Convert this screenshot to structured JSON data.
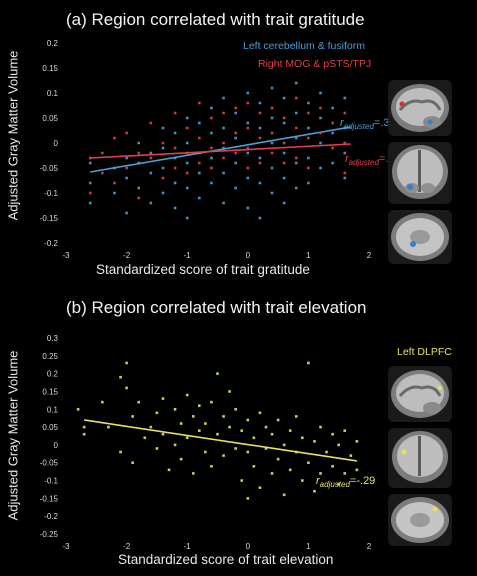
{
  "chart_data": [
    {
      "type": "scatter",
      "title": "(a) Region correlated with trait gratitude",
      "xlabel": "Standardized score of trait gratitude",
      "ylabel": "Adjusted Gray Matter Volume",
      "xlim": [
        -3,
        2
      ],
      "ylim": [
        -0.2,
        0.2
      ],
      "xticks": [
        "-3",
        "-2",
        "-1",
        "0",
        "1",
        "2"
      ],
      "yticks": [
        "0.2",
        "0.15",
        "0.1",
        "0.05",
        "0",
        "-0.05",
        "-0.1",
        "-0.15",
        "-0.2"
      ],
      "grid": false,
      "legend_position": "top-right",
      "series": [
        {
          "name": "Left cerebellum & fusiform",
          "color": "#4a9fd8",
          "r_label": "r",
          "r_subscript": "adjusted",
          "r_value": "=.31",
          "fit": {
            "x": [
              -2.6,
              1.7
            ],
            "y": [
              -0.058,
              0.032
            ]
          },
          "points": [
            [
              -2.6,
              -0.04
            ],
            [
              -2.6,
              -0.08
            ],
            [
              -2.6,
              -0.12
            ],
            [
              -2.2,
              -0.05
            ],
            [
              -2.2,
              -0.1
            ],
            [
              -2.0,
              -0.03
            ],
            [
              -2.0,
              -0.07
            ],
            [
              -2.0,
              -0.14
            ],
            [
              -1.8,
              0.0
            ],
            [
              -1.8,
              -0.04
            ],
            [
              -1.8,
              -0.09
            ],
            [
              -1.6,
              -0.02
            ],
            [
              -1.6,
              -0.06
            ],
            [
              -1.6,
              -0.12
            ],
            [
              -1.4,
              0.03
            ],
            [
              -1.4,
              -0.01
            ],
            [
              -1.4,
              -0.05
            ],
            [
              -1.4,
              -0.1
            ],
            [
              -1.2,
              0.02
            ],
            [
              -1.2,
              -0.03
            ],
            [
              -1.2,
              -0.08
            ],
            [
              -1.2,
              -0.13
            ],
            [
              -1.0,
              0.05
            ],
            [
              -1.0,
              0.0
            ],
            [
              -1.0,
              -0.04
            ],
            [
              -1.0,
              -0.09
            ],
            [
              -0.8,
              0.04
            ],
            [
              -0.8,
              -0.02
            ],
            [
              -0.8,
              -0.06
            ],
            [
              -0.8,
              -0.11
            ],
            [
              -0.6,
              0.07
            ],
            [
              -0.6,
              0.02
            ],
            [
              -0.6,
              -0.03
            ],
            [
              -0.6,
              -0.08
            ],
            [
              -0.4,
              0.09
            ],
            [
              -0.4,
              0.03
            ],
            [
              -0.4,
              -0.01
            ],
            [
              -0.4,
              -0.06
            ],
            [
              -0.4,
              -0.12
            ],
            [
              -0.2,
              0.06
            ],
            [
              -0.2,
              0.01
            ],
            [
              -0.2,
              -0.04
            ],
            [
              -0.2,
              -0.09
            ],
            [
              0.0,
              0.1
            ],
            [
              0.0,
              0.04
            ],
            [
              0.0,
              -0.02
            ],
            [
              0.0,
              -0.07
            ],
            [
              0.0,
              -0.13
            ],
            [
              0.2,
              0.08
            ],
            [
              0.2,
              0.03
            ],
            [
              0.2,
              -0.03
            ],
            [
              0.2,
              -0.08
            ],
            [
              0.4,
              0.11
            ],
            [
              0.4,
              0.05
            ],
            [
              0.4,
              0.0
            ],
            [
              0.4,
              -0.05
            ],
            [
              0.4,
              -0.1
            ],
            [
              0.6,
              0.09
            ],
            [
              0.6,
              0.04
            ],
            [
              0.6,
              -0.02
            ],
            [
              0.6,
              -0.07
            ],
            [
              0.8,
              0.12
            ],
            [
              0.8,
              0.06
            ],
            [
              0.8,
              0.01
            ],
            [
              0.8,
              -0.04
            ],
            [
              0.8,
              -0.09
            ],
            [
              1.0,
              0.08
            ],
            [
              1.0,
              0.03
            ],
            [
              1.0,
              -0.03
            ],
            [
              1.0,
              -0.08
            ],
            [
              1.2,
              0.1
            ],
            [
              1.2,
              0.05
            ],
            [
              1.2,
              0.0
            ],
            [
              1.2,
              -0.05
            ],
            [
              1.4,
              0.07
            ],
            [
              1.4,
              0.02
            ],
            [
              1.4,
              -0.04
            ],
            [
              1.6,
              0.09
            ],
            [
              1.6,
              0.03
            ],
            [
              1.6,
              -0.02
            ],
            [
              1.6,
              -0.07
            ],
            [
              -1.0,
              -0.15
            ],
            [
              0.2,
              -0.15
            ],
            [
              0.6,
              -0.12
            ]
          ]
        },
        {
          "name": "Right MOG & pSTS/TPJ",
          "color": "#e0404a",
          "r_label": "r",
          "r_subscript": "adjusted",
          "r_value": "=.28",
          "fit": {
            "x": [
              -2.6,
              1.7
            ],
            "y": [
              -0.03,
              -0.002
            ]
          },
          "points": [
            [
              -2.6,
              -0.03
            ],
            [
              -2.6,
              -0.1
            ],
            [
              -2.4,
              -0.06
            ],
            [
              -2.4,
              -0.02
            ],
            [
              -2.2,
              0.01
            ],
            [
              -2.2,
              -0.08
            ],
            [
              -2.0,
              0.02
            ],
            [
              -2.0,
              -0.05
            ],
            [
              -1.8,
              -0.02
            ],
            [
              -1.8,
              -0.11
            ],
            [
              -1.6,
              0.04
            ],
            [
              -1.6,
              -0.03
            ],
            [
              -1.4,
              0.0
            ],
            [
              -1.4,
              -0.07
            ],
            [
              -1.2,
              0.06
            ],
            [
              -1.2,
              -0.01
            ],
            [
              -1.2,
              -0.05
            ],
            [
              -1.0,
              0.03
            ],
            [
              -1.0,
              -0.02
            ],
            [
              -1.0,
              -0.06
            ],
            [
              -0.8,
              0.08
            ],
            [
              -0.8,
              0.01
            ],
            [
              -0.8,
              -0.04
            ],
            [
              -0.6,
              0.05
            ],
            [
              -0.6,
              -0.01
            ],
            [
              -0.6,
              -0.05
            ],
            [
              -0.4,
              0.06
            ],
            [
              -0.4,
              0.0
            ],
            [
              -0.4,
              -0.03
            ],
            [
              -0.2,
              0.07
            ],
            [
              -0.2,
              0.02
            ],
            [
              -0.2,
              -0.02
            ],
            [
              0.0,
              0.08
            ],
            [
              0.0,
              0.03
            ],
            [
              0.0,
              -0.01
            ],
            [
              0.0,
              -0.05
            ],
            [
              0.2,
              0.06
            ],
            [
              0.2,
              0.01
            ],
            [
              0.2,
              -0.04
            ],
            [
              0.4,
              0.07
            ],
            [
              0.4,
              0.02
            ],
            [
              0.4,
              -0.02
            ],
            [
              0.6,
              0.05
            ],
            [
              0.6,
              0.0
            ],
            [
              0.6,
              -0.04
            ],
            [
              0.8,
              0.09
            ],
            [
              0.8,
              0.03
            ],
            [
              0.8,
              -0.03
            ],
            [
              1.0,
              0.06
            ],
            [
              1.0,
              0.01
            ],
            [
              1.0,
              -0.05
            ],
            [
              1.2,
              0.07
            ],
            [
              1.2,
              0.02
            ],
            [
              1.4,
              0.04
            ],
            [
              1.4,
              -0.01
            ],
            [
              1.6,
              0.06
            ],
            [
              1.6,
              0.0
            ],
            [
              1.6,
              -0.06
            ]
          ]
        }
      ]
    },
    {
      "type": "scatter",
      "title": "(b) Region correlated with trait elevation",
      "xlabel": "Standardized score of trait elevation",
      "ylabel": "Adjusted Gray Matter Volume",
      "xlim": [
        -3,
        2
      ],
      "ylim": [
        -0.25,
        0.3
      ],
      "xticks": [
        "-3",
        "-2",
        "-1",
        "0",
        "1",
        "2"
      ],
      "yticks": [
        "0.3",
        "0.25",
        "0.2",
        "0.15",
        "0.1",
        "0.05",
        "0",
        "-0.05",
        "-0.1",
        "-0.15",
        "-0.2",
        "-0.25"
      ],
      "grid": false,
      "legend_position": "top-right",
      "series": [
        {
          "name": "Left DLPFC",
          "color": "#e8e060",
          "r_label": "r",
          "r_subscript": "adjusted",
          "r_value": "=-.29",
          "fit": {
            "x": [
              -2.7,
              1.8
            ],
            "y": [
              0.07,
              -0.045
            ]
          },
          "points": [
            [
              -2.8,
              0.1
            ],
            [
              -2.7,
              0.05
            ],
            [
              -2.7,
              0.03
            ],
            [
              -2.4,
              0.12
            ],
            [
              -2.3,
              0.05
            ],
            [
              -2.1,
              0.19
            ],
            [
              -2.1,
              -0.02
            ],
            [
              -2.0,
              0.23
            ],
            [
              -2.0,
              0.16
            ],
            [
              -1.9,
              0.08
            ],
            [
              -1.9,
              -0.05
            ],
            [
              -1.8,
              0.12
            ],
            [
              -1.7,
              0.02
            ],
            [
              -1.6,
              0.05
            ],
            [
              -1.5,
              0.09
            ],
            [
              -1.5,
              -0.01
            ],
            [
              -1.4,
              0.13
            ],
            [
              -1.4,
              0.03
            ],
            [
              -1.3,
              -0.07
            ],
            [
              -1.2,
              0.1
            ],
            [
              -1.2,
              0.0
            ],
            [
              -1.1,
              0.06
            ],
            [
              -1.1,
              -0.04
            ],
            [
              -1.0,
              0.14
            ],
            [
              -1.0,
              0.02
            ],
            [
              -0.9,
              0.08
            ],
            [
              -0.9,
              -0.08
            ],
            [
              -0.8,
              0.04
            ],
            [
              -0.8,
              0.11
            ],
            [
              -0.7,
              -0.02
            ],
            [
              -0.7,
              0.06
            ],
            [
              -0.6,
              0.12
            ],
            [
              -0.6,
              -0.06
            ],
            [
              -0.5,
              0.03
            ],
            [
              -0.5,
              0.2
            ],
            [
              -0.4,
              0.08
            ],
            [
              -0.4,
              -0.03
            ],
            [
              -0.3,
              0.05
            ],
            [
              -0.3,
              0.15
            ],
            [
              -0.2,
              -0.01
            ],
            [
              -0.2,
              0.1
            ],
            [
              -0.1,
              0.04
            ],
            [
              -0.1,
              -0.1
            ],
            [
              0.0,
              0.07
            ],
            [
              0.0,
              -0.02
            ],
            [
              0.0,
              -0.15
            ],
            [
              0.1,
              0.02
            ],
            [
              0.1,
              -0.06
            ],
            [
              0.2,
              0.09
            ],
            [
              0.2,
              -0.12
            ],
            [
              0.3,
              -0.01
            ],
            [
              0.3,
              0.05
            ],
            [
              0.4,
              -0.08
            ],
            [
              0.4,
              0.03
            ],
            [
              0.5,
              0.07
            ],
            [
              0.5,
              -0.04
            ],
            [
              0.6,
              -0.14
            ],
            [
              0.6,
              0.0
            ],
            [
              0.7,
              0.04
            ],
            [
              0.7,
              -0.07
            ],
            [
              0.8,
              0.08
            ],
            [
              0.8,
              -0.02
            ],
            [
              0.9,
              -0.1
            ],
            [
              0.9,
              0.02
            ],
            [
              1.0,
              0.23
            ],
            [
              1.0,
              -0.05
            ],
            [
              1.1,
              0.01
            ],
            [
              1.1,
              -0.13
            ],
            [
              1.2,
              0.05
            ],
            [
              1.2,
              -0.08
            ],
            [
              1.3,
              -0.02
            ],
            [
              1.4,
              0.03
            ],
            [
              1.4,
              -0.06
            ],
            [
              1.5,
              -0.11
            ],
            [
              1.5,
              0.0
            ],
            [
              1.6,
              0.04
            ],
            [
              1.6,
              -0.08
            ],
            [
              1.7,
              -0.03
            ],
            [
              1.8,
              -0.07
            ],
            [
              1.8,
              0.01
            ]
          ]
        }
      ]
    }
  ]
}
